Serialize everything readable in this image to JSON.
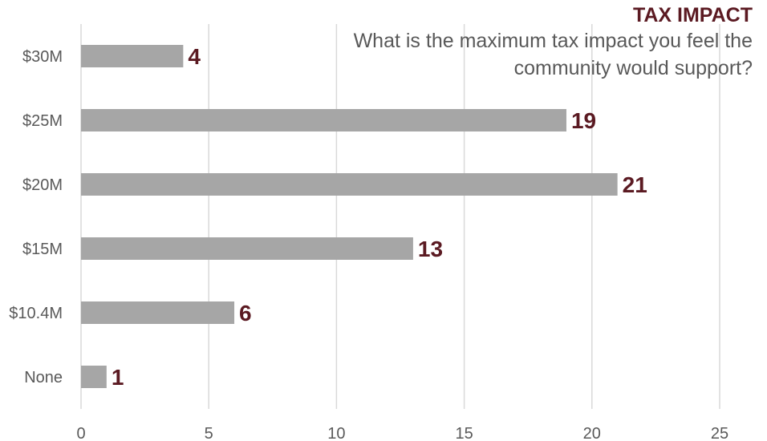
{
  "chart_data": {
    "type": "bar",
    "orientation": "horizontal",
    "title": "TAX IMPACT",
    "subtitle": "What is the maximum tax impact you feel the community would support?",
    "categories": [
      "$30M",
      "$25M",
      "$20M",
      "$15M",
      "$10.4M",
      "None"
    ],
    "values": [
      4,
      19,
      21,
      13,
      6,
      1
    ],
    "xlim": [
      0,
      25
    ],
    "x_ticks": [
      "0",
      "5",
      "10",
      "15",
      "20",
      "25"
    ],
    "grid": "vertical",
    "legend": "none",
    "data_labels": true
  },
  "colors": {
    "bar": "#a6a6a6",
    "label": "#5b1a22",
    "grid": "#d9d9d9",
    "tick_text": "#595959"
  }
}
